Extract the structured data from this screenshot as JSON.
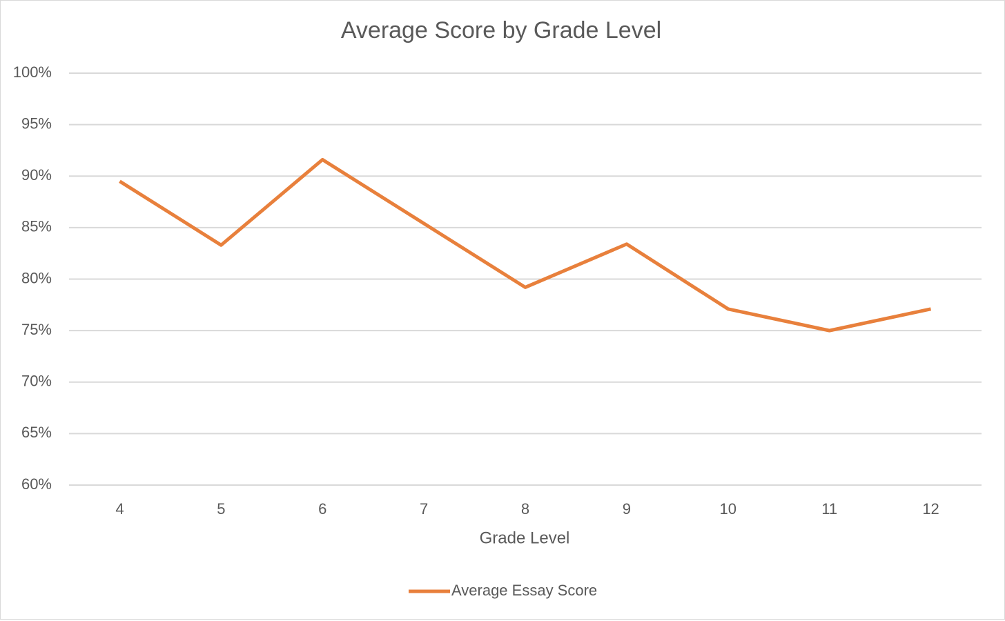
{
  "chart_data": {
    "type": "line",
    "title": "Average Score by Grade Level",
    "x_label": "Grade Level",
    "categories": [
      "4",
      "5",
      "6",
      "7",
      "8",
      "9",
      "10",
      "11",
      "12"
    ],
    "series": [
      {
        "name": "Average Essay Score",
        "color": "#e8803c",
        "values": [
          89.5,
          83.3,
          91.6,
          85.4,
          79.2,
          83.4,
          77.1,
          75.0,
          77.1
        ]
      }
    ],
    "ylim": [
      60,
      100
    ],
    "yticks": [
      {
        "value": 60,
        "label": "60%"
      },
      {
        "value": 65,
        "label": "65%"
      },
      {
        "value": 70,
        "label": "70%"
      },
      {
        "value": 75,
        "label": "75%"
      },
      {
        "value": 80,
        "label": "80%"
      },
      {
        "value": 85,
        "label": "85%"
      },
      {
        "value": 90,
        "label": "90%"
      },
      {
        "value": 95,
        "label": "95%"
      },
      {
        "value": 100,
        "label": "100%"
      }
    ],
    "grid": true,
    "legend": "bottom"
  }
}
